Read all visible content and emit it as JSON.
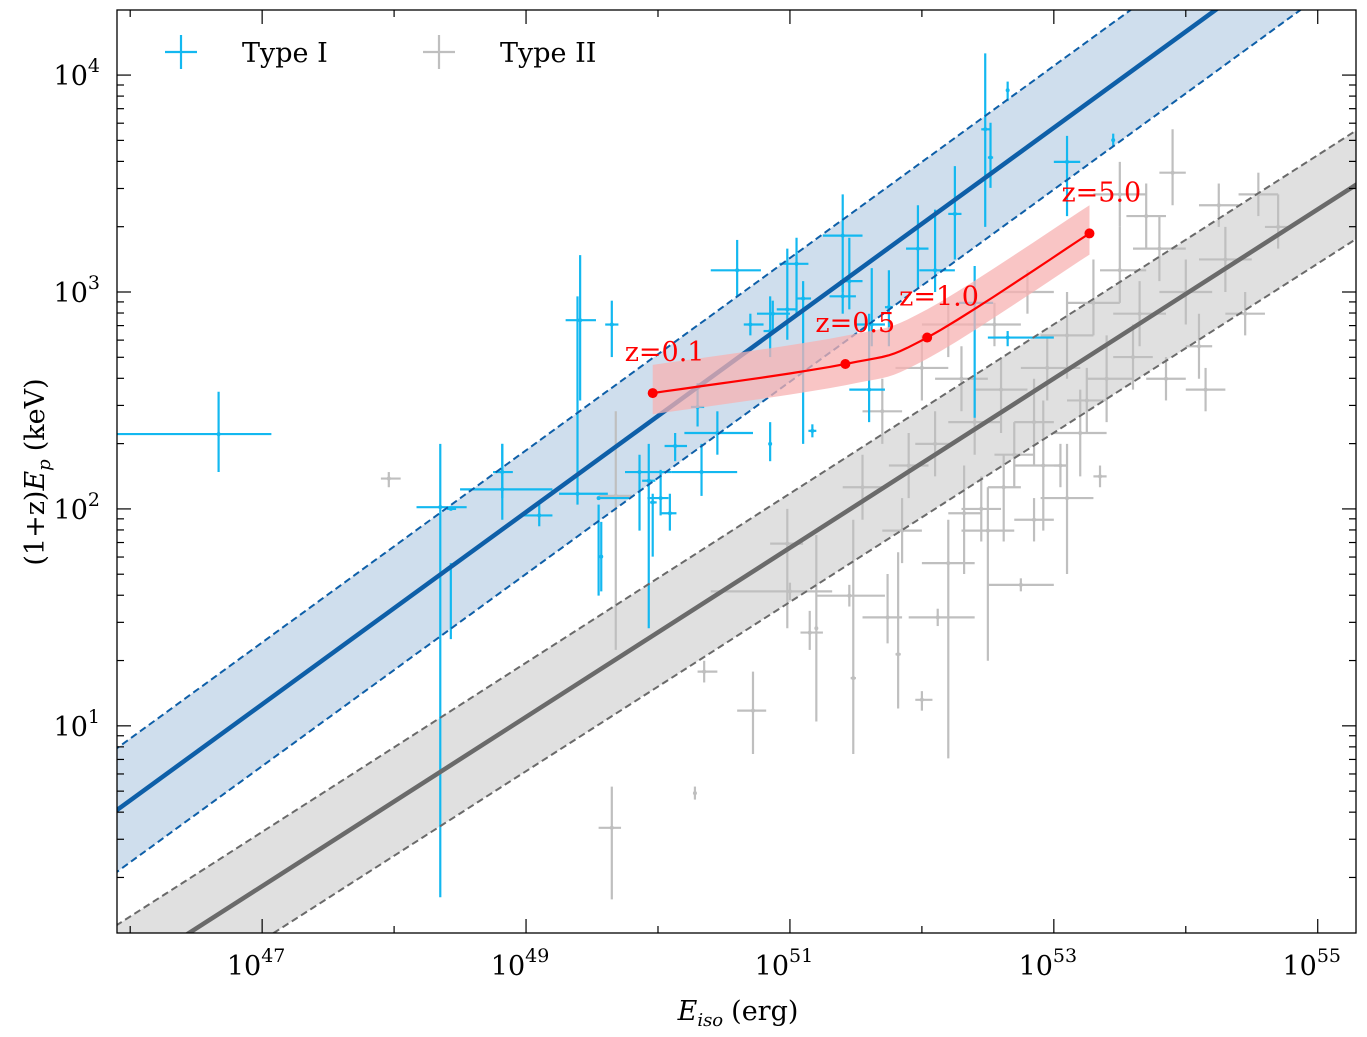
{
  "chart_data": {
    "type": "scatter",
    "title": "",
    "xlabel": "E_iso (erg)",
    "xlabel_main": "E",
    "xlabel_sub": "iso",
    "xlabel_unit": "(erg)",
    "ylabel": "(1+z)E_p (keV)",
    "ylabel_prefix": "(1+z)",
    "ylabel_main": "E",
    "ylabel_sub": "p",
    "ylabel_unit": "(keV)",
    "xscale": "log",
    "yscale": "log",
    "xlim_log10": [
      45.9,
      55.29
    ],
    "ylim_log10": [
      0.045,
      4.3
    ],
    "x_ticks": [
      {
        "base": "10",
        "exp": "47",
        "log10": 47
      },
      {
        "base": "10",
        "exp": "49",
        "log10": 49
      },
      {
        "base": "10",
        "exp": "51",
        "log10": 51
      },
      {
        "base": "10",
        "exp": "53",
        "log10": 53
      },
      {
        "base": "10",
        "exp": "55",
        "log10": 55
      }
    ],
    "y_ticks": [
      {
        "base": "10",
        "exp": "1",
        "log10": 1
      },
      {
        "base": "10",
        "exp": "2",
        "log10": 2
      },
      {
        "base": "10",
        "exp": "3",
        "log10": 3
      },
      {
        "base": "10",
        "exp": "4",
        "log10": 4
      }
    ],
    "grid": false,
    "legend": {
      "placement": "top-left",
      "entries": [
        {
          "label": "Type I",
          "color": "#13b8f0",
          "marker": "errorbar-cross"
        },
        {
          "label": "Type II",
          "color": "#bfbfbf",
          "marker": "errorbar-cross"
        }
      ]
    },
    "fits": [
      {
        "name": "Type I fit",
        "color": "#0e5fa8",
        "band_color": "#cfdeed",
        "slope": 0.443,
        "intercept_at_log10x_45_9": 0.612,
        "band_halfwidth_dex": 0.285
      },
      {
        "name": "Type II fit",
        "color": "#6a6a6a",
        "band_color": "#e0e0e0",
        "slope": 0.39,
        "intercept_at_log10x_45_9": -0.168,
        "band_halfwidth_dex": 0.25
      }
    ],
    "track": {
      "name": "redshift track",
      "color": "#ff0000",
      "band_color": "#f7b2b2",
      "band_halfwidth_dex": 0.13,
      "points": [
        {
          "label": "z=0.1",
          "log10x": 49.96,
          "log10y": 2.534
        },
        {
          "label": "z=0.5",
          "log10x": 51.42,
          "log10y": 2.668
        },
        {
          "label": "z=1.0",
          "log10x": 52.04,
          "log10y": 2.79
        },
        {
          "label": "z=5.0",
          "log10x": 53.27,
          "log10y": 3.27
        }
      ]
    },
    "series": [
      {
        "name": "Type I",
        "color": "#13b8f0",
        "points_log10": [
          [
            46.67,
            2.345,
            45.9,
            47.07,
            2.17,
            2.54
          ],
          [
            48.35,
            2.008,
            48.17,
            48.55,
            0.21,
            2.3
          ],
          [
            48.43,
            2.0,
            48.4,
            48.47,
            1.4,
            1.75
          ],
          [
            48.82,
            2.09,
            48.5,
            49.2,
            1.95,
            2.3
          ],
          [
            48.82,
            2.17,
            48.75,
            48.9,
            2.05,
            2.3
          ],
          [
            49.1,
            1.97,
            48.95,
            49.2,
            1.92,
            2.02
          ],
          [
            49.39,
            2.07,
            49.25,
            49.62,
            2.02,
            2.98
          ],
          [
            49.55,
            2.05,
            49.55,
            49.78,
            1.6,
            2.02
          ],
          [
            49.41,
            2.87,
            49.3,
            49.53,
            2.5,
            3.17
          ],
          [
            49.65,
            2.85,
            49.6,
            49.7,
            2.7,
            2.96
          ],
          [
            49.57,
            1.78,
            49.56,
            49.58,
            1.62,
            1.94
          ],
          [
            49.86,
            2.17,
            49.75,
            50.1,
            1.9,
            2.25
          ],
          [
            49.93,
            2.13,
            49.88,
            49.98,
            1.45,
            2.3
          ],
          [
            49.96,
            2.03,
            49.94,
            49.99,
            1.78,
            2.07
          ],
          [
            50.02,
            2.05,
            49.92,
            50.08,
            1.97,
            2.18
          ],
          [
            50.09,
            1.98,
            50.02,
            50.14,
            1.9,
            2.07
          ],
          [
            50.33,
            2.17,
            50.1,
            50.6,
            2.06,
            2.3
          ],
          [
            50.13,
            2.29,
            50.05,
            50.22,
            2.22,
            2.35
          ],
          [
            50.3,
            2.47,
            50.25,
            50.35,
            2.38,
            2.58
          ],
          [
            50.45,
            2.35,
            50.2,
            50.72,
            2.25,
            2.45
          ],
          [
            50.6,
            3.1,
            50.4,
            50.78,
            2.98,
            3.24
          ],
          [
            50.7,
            2.85,
            50.65,
            50.8,
            2.8,
            2.9
          ],
          [
            50.87,
            2.9,
            50.75,
            51.0,
            2.82,
            2.96
          ],
          [
            50.85,
            2.82,
            50.8,
            50.9,
            2.7,
            2.98
          ],
          [
            50.85,
            2.3,
            50.84,
            50.86,
            2.22,
            2.4
          ],
          [
            50.98,
            2.92,
            50.9,
            51.05,
            2.78,
            3.2
          ],
          [
            51.05,
            3.13,
            50.92,
            51.14,
            2.9,
            3.25
          ],
          [
            51.1,
            2.97,
            51.05,
            51.16,
            2.3,
            3.05
          ],
          [
            51.17,
            2.36,
            51.14,
            51.2,
            2.33,
            2.39
          ],
          [
            51.4,
            3.26,
            51.25,
            51.55,
            3.0,
            3.45
          ],
          [
            51.45,
            3.05,
            51.38,
            51.55,
            2.92,
            3.25
          ],
          [
            51.4,
            2.98,
            51.3,
            51.5,
            2.9,
            3.04
          ],
          [
            51.62,
            2.85,
            51.5,
            51.72,
            2.75,
            3.11
          ],
          [
            51.6,
            2.55,
            51.45,
            51.72,
            2.4,
            2.9
          ],
          [
            51.75,
            2.93,
            51.72,
            51.78,
            2.75,
            3.1
          ],
          [
            51.97,
            3.2,
            51.88,
            52.05,
            3.02,
            3.4
          ],
          [
            52.1,
            3.1,
            51.98,
            52.25,
            3.0,
            3.38
          ],
          [
            52.25,
            3.36,
            52.2,
            52.3,
            3.15,
            3.58
          ],
          [
            52.4,
            2.95,
            52.28,
            52.54,
            2.42,
            3.12
          ],
          [
            52.48,
            3.75,
            52.45,
            52.52,
            3.3,
            4.1
          ],
          [
            52.52,
            3.62,
            52.5,
            52.54,
            3.48,
            3.78
          ],
          [
            52.65,
            3.93,
            52.64,
            52.66,
            3.88,
            3.97
          ],
          [
            52.65,
            2.79,
            52.5,
            53.0,
            2.75,
            2.82
          ],
          [
            53.1,
            3.6,
            53.0,
            53.2,
            3.35,
            3.72
          ],
          [
            53.45,
            3.7,
            53.44,
            53.46,
            3.67,
            3.73
          ]
        ]
      },
      {
        "name": "Type II",
        "color": "#bfbfbf",
        "points_log10": [
          [
            47.96,
            2.14,
            47.9,
            48.05,
            2.1,
            2.17
          ],
          [
            49.68,
            2.06,
            49.55,
            49.8,
            1.35,
            2.45
          ],
          [
            49.65,
            0.53,
            49.55,
            49.72,
            0.2,
            0.72
          ],
          [
            50.28,
            0.69,
            50.27,
            50.29,
            0.66,
            0.72
          ],
          [
            50.35,
            1.25,
            50.3,
            50.45,
            1.2,
            1.3
          ],
          [
            50.72,
            1.07,
            50.6,
            50.82,
            0.87,
            1.25
          ],
          [
            50.98,
            1.84,
            50.85,
            51.1,
            1.45,
            2.0
          ],
          [
            51.0,
            1.62,
            50.4,
            51.32,
            1.58,
            1.66
          ],
          [
            51.15,
            1.43,
            51.08,
            51.25,
            1.35,
            1.53
          ],
          [
            51.2,
            1.45,
            51.19,
            51.21,
            1.02,
            1.88
          ],
          [
            51.45,
            1.6,
            51.2,
            51.72,
            1.55,
            1.65
          ],
          [
            51.48,
            1.22,
            51.46,
            51.5,
            0.87,
            1.95
          ],
          [
            51.74,
            1.5,
            51.55,
            51.85,
            1.38,
            1.7
          ],
          [
            51.82,
            1.33,
            51.8,
            51.84,
            1.08,
            1.8
          ],
          [
            52.0,
            1.12,
            51.95,
            52.08,
            1.07,
            1.16
          ],
          [
            52.12,
            1.5,
            51.9,
            52.4,
            1.46,
            1.54
          ],
          [
            52.2,
            1.75,
            52.0,
            52.4,
            0.85,
            1.95
          ],
          [
            52.32,
            1.98,
            52.2,
            52.45,
            1.7,
            2.2
          ],
          [
            52.5,
            1.9,
            52.3,
            52.7,
            1.3,
            2.1
          ],
          [
            52.62,
            2.1,
            52.5,
            52.75,
            1.85,
            2.25
          ],
          [
            52.75,
            1.65,
            52.5,
            53.0,
            1.62,
            1.68
          ],
          [
            52.92,
            2.2,
            52.7,
            53.1,
            1.9,
            2.5
          ],
          [
            53.1,
            2.05,
            52.9,
            53.3,
            1.7,
            2.3
          ],
          [
            52.85,
            2.4,
            52.7,
            53.0,
            2.2,
            2.6
          ],
          [
            53.2,
            2.35,
            53.0,
            53.4,
            2.15,
            2.55
          ],
          [
            53.4,
            2.6,
            53.25,
            53.6,
            2.4,
            2.8
          ],
          [
            52.4,
            2.4,
            52.2,
            52.6,
            2.25,
            2.55
          ],
          [
            52.6,
            2.55,
            52.4,
            52.8,
            2.35,
            2.7
          ],
          [
            52.95,
            2.65,
            52.75,
            53.2,
            2.5,
            2.8
          ],
          [
            53.1,
            2.8,
            52.9,
            53.3,
            2.6,
            3.0
          ],
          [
            53.3,
            2.95,
            53.1,
            53.5,
            2.8,
            3.15
          ],
          [
            53.5,
            3.1,
            53.35,
            53.7,
            2.95,
            3.3
          ],
          [
            53.65,
            2.9,
            53.45,
            53.85,
            2.75,
            3.05
          ],
          [
            53.8,
            3.2,
            53.6,
            54.0,
            3.05,
            3.35
          ],
          [
            54.0,
            3.0,
            53.8,
            54.2,
            2.85,
            3.15
          ],
          [
            54.1,
            2.75,
            54.0,
            54.2,
            2.6,
            2.9
          ],
          [
            54.3,
            3.15,
            54.1,
            54.5,
            3.0,
            3.3
          ],
          [
            54.45,
            2.9,
            54.3,
            54.6,
            2.8,
            3.0
          ],
          [
            54.7,
            3.3,
            54.6,
            54.8,
            3.2,
            3.45
          ],
          [
            54.55,
            3.45,
            54.4,
            54.7,
            3.35,
            3.55
          ],
          [
            53.9,
            3.55,
            53.8,
            54.0,
            3.4,
            3.75
          ],
          [
            53.5,
            3.45,
            53.3,
            53.7,
            3.3,
            3.6
          ],
          [
            52.3,
            2.6,
            52.1,
            52.5,
            2.45,
            2.75
          ],
          [
            52.1,
            2.3,
            51.95,
            52.25,
            2.15,
            2.45
          ],
          [
            51.9,
            2.2,
            51.75,
            52.05,
            2.05,
            2.35
          ],
          [
            51.55,
            2.1,
            51.4,
            51.7,
            1.95,
            2.25
          ],
          [
            52.45,
            2.0,
            52.3,
            52.6,
            1.85,
            2.15
          ],
          [
            52.7,
            2.25,
            52.55,
            52.85,
            2.1,
            2.4
          ],
          [
            53.25,
            2.5,
            53.1,
            53.4,
            2.35,
            2.65
          ],
          [
            53.6,
            2.7,
            53.45,
            53.75,
            2.55,
            2.85
          ],
          [
            53.05,
            2.2,
            53.0,
            53.1,
            2.1,
            2.3
          ],
          [
            53.35,
            2.15,
            53.3,
            53.4,
            2.1,
            2.2
          ],
          [
            52.85,
            1.95,
            52.7,
            53.0,
            1.85,
            2.05
          ],
          [
            52.55,
            2.85,
            52.35,
            52.75,
            2.75,
            2.95
          ],
          [
            52.8,
            3.0,
            52.6,
            53.0,
            2.9,
            3.1
          ],
          [
            53.7,
            3.35,
            53.55,
            53.85,
            3.2,
            3.5
          ],
          [
            54.25,
            3.4,
            54.1,
            54.4,
            3.3,
            3.5
          ],
          [
            52.2,
            2.85,
            52.0,
            52.4,
            2.7,
            2.95
          ],
          [
            52.0,
            2.65,
            51.8,
            52.2,
            2.5,
            2.8
          ],
          [
            51.7,
            2.45,
            51.55,
            51.85,
            2.3,
            2.6
          ],
          [
            51.85,
            1.9,
            51.7,
            52.0,
            1.75,
            2.05
          ],
          [
            53.85,
            2.6,
            53.7,
            54.0,
            2.5,
            2.7
          ],
          [
            54.15,
            2.55,
            54.0,
            54.3,
            2.45,
            2.65
          ]
        ]
      }
    ]
  }
}
